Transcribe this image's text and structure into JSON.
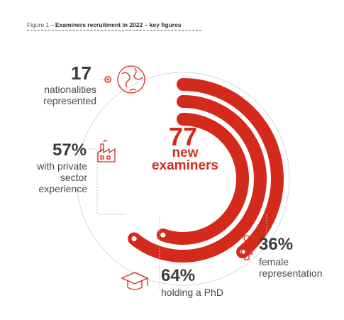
{
  "figure": {
    "number": "Figure 1",
    "separator": "–",
    "title": "Examiners recruitment in 2022 – key figures"
  },
  "center": {
    "value": "77",
    "label_line1": "new",
    "label_line2": "examiners"
  },
  "stats": {
    "nationalities": {
      "value": "17",
      "label_line1": "nationalities",
      "label_line2": "represented",
      "icon": "globe-icon"
    },
    "private_sector": {
      "value": "57%",
      "label_line1": "with private",
      "label_line2": "sector",
      "label_line3": "experience",
      "icon": "factory-icon"
    },
    "phd": {
      "value": "64%",
      "label_line1": "holding a PhD",
      "icon": "graduation-cap-icon"
    },
    "female": {
      "value": "36%",
      "label_line1": "female",
      "label_line2": "representation",
      "icon": "female-person-icon"
    }
  },
  "colors": {
    "accent": "#d42a1c",
    "text": "#3a3a3a",
    "guide": "#c8c8c8"
  },
  "chart_data": {
    "type": "radial_bar",
    "series": [
      {
        "name": "female representation",
        "percent": 36
      },
      {
        "name": "holding a PhD",
        "percent": 64
      },
      {
        "name": "with private sector experience",
        "percent": 57
      }
    ]
  }
}
